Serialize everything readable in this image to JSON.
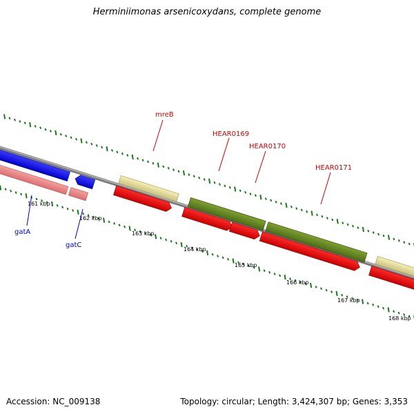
{
  "title": "Herminiimonas arsenicoxydans, complete genome",
  "footer": {
    "accession": "Accession: NC_009138",
    "topology": "Topology: circular; Length: 3,424,307 bp; Genes: 3,353"
  },
  "scale_labels": [
    "161 kbp",
    "162 kbp",
    "163 kbp",
    "164 kbp",
    "165 kbp",
    "166 kbp",
    "167 kbp",
    "168 kbp"
  ],
  "gene_labels": [
    {
      "id": "gatA",
      "text": "gatA",
      "color": "#0000cc"
    },
    {
      "id": "gatC",
      "text": "gatC",
      "color": "#0000cc"
    },
    {
      "id": "mreB",
      "text": "mreB",
      "color": "#cc0000"
    },
    {
      "id": "HEAR0169",
      "text": "HEAR0169",
      "color": "#cc0000"
    },
    {
      "id": "HEAR0170",
      "text": "HEAR0170",
      "color": "#cc0000"
    },
    {
      "id": "HEAR0171",
      "text": "HEAR0171",
      "color": "#cc0000"
    }
  ],
  "colors": {
    "backbone": "#8a8a8a",
    "tick": "#1a7a1a",
    "cds_blue": "#0000ee",
    "cds_pink": "#ee8888",
    "cds_red": "#ee0000",
    "cds_yellow": "#eee8a0",
    "cds_olive": "#6b8e23"
  },
  "legend_icons": [
    "backbone-strand",
    "forward-cds-arrows",
    "reverse-cds-arrows"
  ]
}
